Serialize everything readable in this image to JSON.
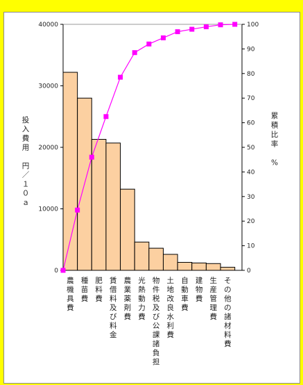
{
  "chart_data": {
    "type": "bar",
    "categories": [
      "農機具費",
      "種苗費",
      "肥料費",
      "賃借料及び料金",
      "農業薬剤費",
      "光熱動力費",
      "物件税及び公課諸負担",
      "土地改良水利費",
      "自動車費",
      "建物費",
      "生産管理費",
      "その他の諸材料費"
    ],
    "series": [
      {
        "type": "bar",
        "values": [
          32200,
          28000,
          21300,
          20700,
          13200,
          4600,
          3600,
          2600,
          1300,
          1200,
          1100,
          500
        ]
      },
      {
        "type": "line",
        "axis": "right",
        "x": [
          0,
          1,
          2,
          3,
          4,
          5,
          6,
          7,
          8,
          9,
          10,
          11,
          12
        ],
        "values": [
          0,
          24.5,
          46,
          62.5,
          78.5,
          88.5,
          92,
          94.5,
          97,
          98,
          99,
          99.8,
          100
        ]
      }
    ],
    "ylabel": "投入費用　円／１０ａ",
    "y2label": "累積比率　%",
    "ylim": [
      0,
      40000
    ],
    "y2lim": [
      0,
      100
    ],
    "yticks": [
      "0",
      "10000",
      "20000",
      "30000",
      "40000"
    ],
    "y2ticks": [
      "0",
      "10",
      "20",
      "30",
      "40",
      "50",
      "60",
      "70",
      "80",
      "90",
      "100"
    ],
    "grid": false,
    "colors": {
      "bar_fill": "#fcd0a1",
      "bar_stroke": "#000000",
      "line": "#ff00ff",
      "marker": "#ff00ff"
    }
  }
}
